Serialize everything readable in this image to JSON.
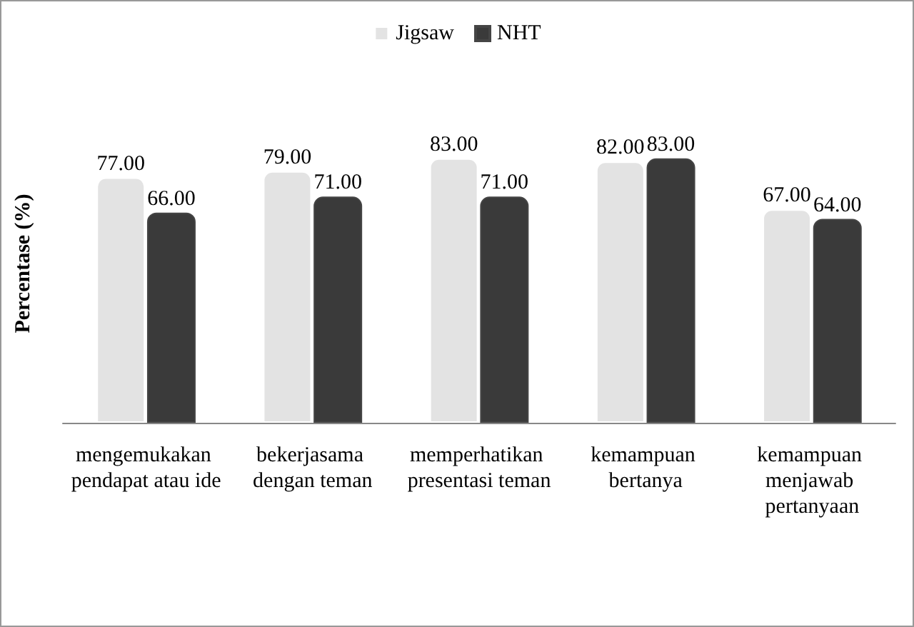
{
  "chart_data": {
    "type": "bar",
    "ylabel": "Percentase (%)",
    "categories": [
      "mengemukakan pendapat atau ide",
      "bekerjasama dengan teman",
      "memperhatikan presentasi teman",
      "kemampuan bertanya",
      "kemampuan menjawab pertanyaan"
    ],
    "series": [
      {
        "name": "Jigsaw",
        "color": "#e3e3e3",
        "values": [
          77,
          79,
          83,
          82,
          67
        ],
        "value_labels": [
          "77.00",
          "79.00",
          "83.00",
          "82.00",
          "67.00"
        ]
      },
      {
        "name": "NHT",
        "color": "#3a3a3a",
        "values": [
          66,
          71,
          71,
          83,
          64
        ],
        "value_labels": [
          "66.00",
          "71.00",
          "71.00",
          "83.00",
          "64.00"
        ]
      }
    ],
    "tick_labels": "x",
    "legend": "top",
    "grid": false
  }
}
